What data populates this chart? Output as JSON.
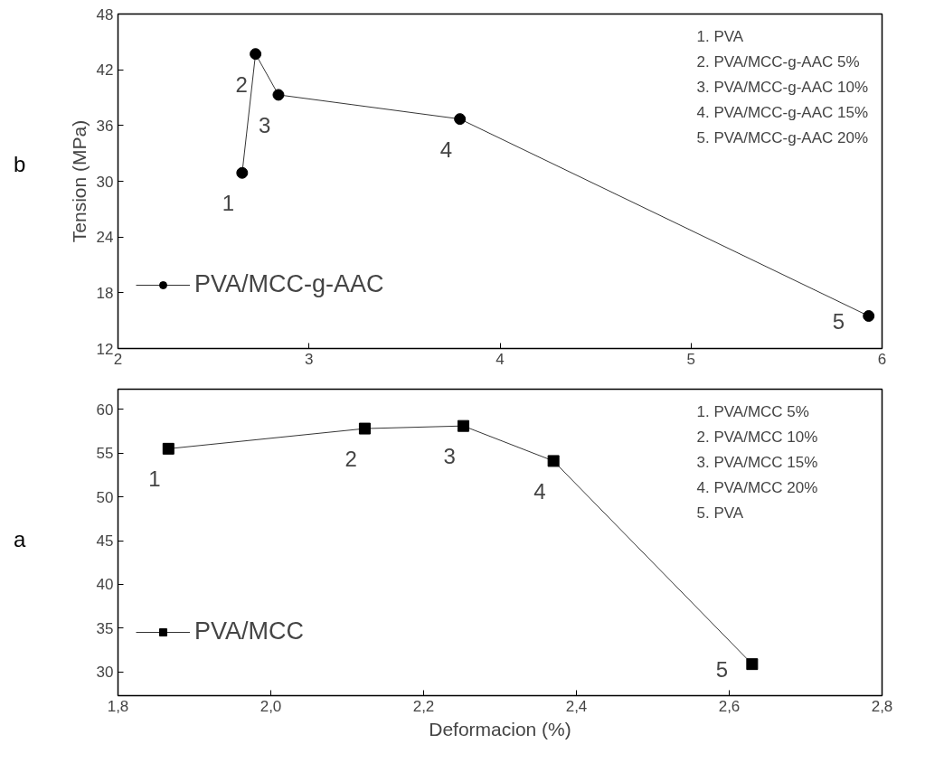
{
  "chart_data": [
    {
      "type": "line",
      "ylabel": "Tension (MPa)",
      "xlim": [
        2,
        6
      ],
      "ylim": [
        12,
        48
      ],
      "xticks": [
        2,
        3,
        4,
        5,
        6
      ],
      "yticks": [
        12,
        18,
        24,
        30,
        36,
        42,
        48
      ],
      "grid": false,
      "legend": "left",
      "marker": "circle",
      "line_style": "solid",
      "x": [
        2.65,
        2.72,
        2.84,
        3.79,
        5.93
      ],
      "series": [
        {
          "name": "PVA/MCC-g-AAC",
          "color": "#000000",
          "values": [
            30.9,
            43.7,
            39.3,
            36.7,
            15.5
          ]
        }
      ],
      "annotations": [
        "b",
        "1. PVA",
        "2. PVA/MCC-g-AAC 5%",
        "3. PVA/MCC-g-AAC 10%",
        "4. PVA/MCC-g-AAC 15%",
        "5. PVA/MCC-g-AAC 20%",
        {
          "text": "1",
          "x": 2.65,
          "y": 30.9
        },
        {
          "text": "2",
          "x": 2.72,
          "y": 43.7
        },
        {
          "text": "3",
          "x": 2.84,
          "y": 39.3
        },
        {
          "text": "4",
          "x": 3.79,
          "y": 36.7
        },
        {
          "text": "5",
          "x": 5.93,
          "y": 15.5
        }
      ]
    },
    {
      "type": "line",
      "xlabel": "Deformacion (%)",
      "xlim": [
        1.8,
        2.8
      ],
      "ylim": [
        27.3,
        62.3
      ],
      "xticks": [
        {
          "value": 1.8,
          "label": "1,8"
        },
        {
          "value": 2.0,
          "label": "2,0"
        },
        {
          "value": 2.2,
          "label": "2,2"
        },
        {
          "value": 2.4,
          "label": "2,4"
        },
        {
          "value": 2.6,
          "label": "2,6"
        },
        {
          "value": 2.8,
          "label": "2,8"
        }
      ],
      "yticks": [
        30,
        35,
        40,
        45,
        50,
        55,
        60
      ],
      "grid": false,
      "legend": "left",
      "marker": "square",
      "line_style": "solid",
      "x": [
        1.866,
        2.123,
        2.252,
        2.37,
        2.63
      ],
      "series": [
        {
          "name": "PVA/MCC",
          "color": "#000000",
          "values": [
            55.5,
            57.8,
            58.1,
            54.1,
            30.9
          ]
        }
      ],
      "annotations": [
        "a",
        "1. PVA/MCC 5%",
        "2. PVA/MCC 10%",
        "3. PVA/MCC 15%",
        "4. PVA/MCC 20%",
        "5. PVA",
        {
          "text": "1",
          "x": 1.866,
          "y": 55.5
        },
        {
          "text": "2",
          "x": 2.123,
          "y": 57.8
        },
        {
          "text": "3",
          "x": 2.252,
          "y": 58.1
        },
        {
          "text": "4",
          "x": 2.37,
          "y": 54.1
        },
        {
          "text": "5",
          "x": 2.63,
          "y": 30.9
        }
      ]
    }
  ]
}
